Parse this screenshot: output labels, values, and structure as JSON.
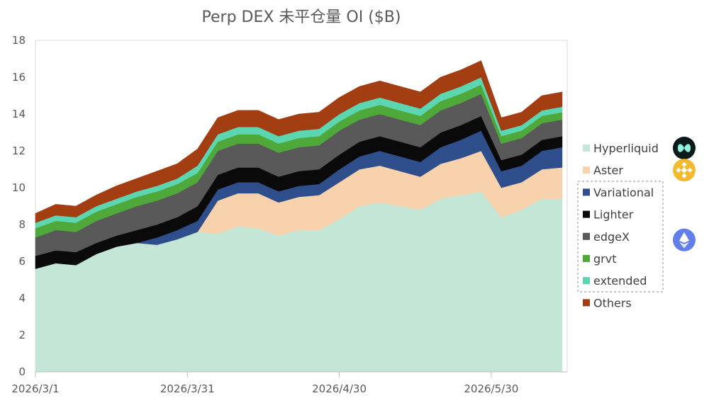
{
  "chart_data": {
    "type": "area",
    "stacked": true,
    "title": "Perp DEX 未平仓量 OI ($B)",
    "xlabel": "",
    "ylabel": "",
    "ylim": [
      0,
      18
    ],
    "yticks": [
      0,
      2,
      4,
      6,
      8,
      10,
      12,
      14,
      16,
      18
    ],
    "xlim": [
      "2026-03-01",
      "2026-06-14"
    ],
    "xticks": [
      {
        "date": "2026-03-01",
        "label": "2026/3/1"
      },
      {
        "date": "2026-03-31",
        "label": "2026/3/31"
      },
      {
        "date": "2026-04-30",
        "label": "2026/4/30"
      },
      {
        "date": "2026-05-30",
        "label": "2026/5/30"
      }
    ],
    "grid": false,
    "legend_position": "right",
    "x": [
      "2026-03-01",
      "2026-03-05",
      "2026-03-09",
      "2026-03-13",
      "2026-03-17",
      "2026-03-21",
      "2026-03-25",
      "2026-03-29",
      "2026-04-02",
      "2026-04-06",
      "2026-04-10",
      "2026-04-14",
      "2026-04-18",
      "2026-04-22",
      "2026-04-26",
      "2026-04-30",
      "2026-05-04",
      "2026-05-08",
      "2026-05-12",
      "2026-05-16",
      "2026-05-20",
      "2026-05-24",
      "2026-05-28",
      "2026-06-01",
      "2026-06-05",
      "2026-06-09",
      "2026-06-13"
    ],
    "series": [
      {
        "name": "Hyperliquid",
        "color": "#c3e6d6",
        "values": [
          5.6,
          5.9,
          5.8,
          6.4,
          6.8,
          7.0,
          6.9,
          7.2,
          7.6,
          7.5,
          7.9,
          7.8,
          7.4,
          7.7,
          7.7,
          8.3,
          9.0,
          9.2,
          9.0,
          8.8,
          9.4,
          9.6,
          9.8,
          8.4,
          8.8,
          9.4,
          9.4
        ]
      },
      {
        "name": "Aster",
        "color": "#f8d1ad",
        "values": [
          0,
          0,
          0,
          0,
          0,
          0,
          0,
          0,
          0,
          1.8,
          1.8,
          1.9,
          1.8,
          1.8,
          1.9,
          2.0,
          2.0,
          2.0,
          1.9,
          1.8,
          1.9,
          2.0,
          2.2,
          1.6,
          1.5,
          1.6,
          1.7
        ]
      },
      {
        "name": "Variational",
        "color": "#2e4f8b",
        "values": [
          0,
          0,
          0,
          0,
          0,
          0,
          0.4,
          0.5,
          0.6,
          0.6,
          0.6,
          0.6,
          0.6,
          0.6,
          0.6,
          0.7,
          0.7,
          0.8,
          0.8,
          0.8,
          0.9,
          1.0,
          1.1,
          0.9,
          0.9,
          1.0,
          1.1
        ]
      },
      {
        "name": "Lighter",
        "color": "#0a0a0a",
        "values": [
          0.7,
          0.7,
          0.7,
          0.6,
          0.6,
          0.7,
          0.7,
          0.7,
          0.8,
          0.8,
          0.8,
          0.8,
          0.8,
          0.8,
          0.8,
          0.8,
          0.8,
          0.8,
          0.8,
          0.8,
          0.8,
          0.8,
          0.8,
          0.6,
          0.6,
          0.6,
          0.6
        ]
      },
      {
        "name": "edgeX",
        "color": "#595959",
        "values": [
          1.0,
          1.1,
          1.1,
          1.2,
          1.2,
          1.3,
          1.3,
          1.3,
          1.3,
          1.3,
          1.3,
          1.3,
          1.3,
          1.3,
          1.3,
          1.3,
          1.2,
          1.2,
          1.2,
          1.2,
          1.2,
          1.2,
          1.2,
          0.9,
          0.9,
          0.9,
          0.9
        ]
      },
      {
        "name": "grvt",
        "color": "#4ea83a",
        "values": [
          0.5,
          0.5,
          0.5,
          0.5,
          0.5,
          0.5,
          0.5,
          0.5,
          0.5,
          0.5,
          0.5,
          0.5,
          0.5,
          0.5,
          0.5,
          0.5,
          0.5,
          0.5,
          0.5,
          0.5,
          0.5,
          0.5,
          0.5,
          0.4,
          0.4,
          0.4,
          0.4
        ]
      },
      {
        "name": "extended",
        "color": "#5cd6b0",
        "values": [
          0.3,
          0.3,
          0.3,
          0.3,
          0.3,
          0.3,
          0.3,
          0.3,
          0.4,
          0.4,
          0.4,
          0.4,
          0.4,
          0.4,
          0.4,
          0.4,
          0.4,
          0.4,
          0.4,
          0.4,
          0.4,
          0.4,
          0.4,
          0.3,
          0.3,
          0.3,
          0.3
        ]
      },
      {
        "name": "Others",
        "color": "#a33d12",
        "values": [
          0.5,
          0.6,
          0.6,
          0.6,
          0.7,
          0.7,
          0.8,
          0.8,
          0.9,
          0.9,
          0.9,
          0.9,
          0.9,
          0.9,
          0.9,
          0.9,
          0.9,
          0.9,
          0.9,
          0.9,
          0.9,
          0.9,
          0.9,
          0.7,
          0.7,
          0.8,
          0.8
        ]
      }
    ],
    "legend_icons": [
      {
        "series": "Hyperliquid",
        "icon": "hyperliquid-logo-icon",
        "color": "#0b1a1a"
      },
      {
        "series": "Aster",
        "icon": "binance-logo-icon",
        "color": "#f3ba2f"
      },
      {
        "series": "edgeX",
        "icon": "ethereum-logo-icon",
        "color": "#627eea"
      }
    ],
    "legend_group_box": [
      "Variational",
      "Lighter",
      "edgeX",
      "grvt",
      "extended"
    ]
  }
}
